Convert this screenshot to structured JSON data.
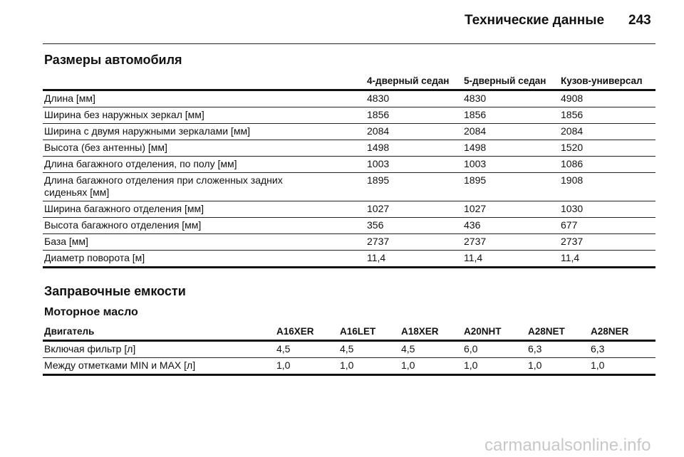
{
  "header": {
    "title": "Технические данные",
    "page": "243"
  },
  "section1": {
    "title": "Размеры автомобиля",
    "table": {
      "columns": [
        "",
        "4-дверный седан",
        "5-дверный седан",
        "Кузов-универсал"
      ],
      "rows": [
        [
          "Длина [мм]",
          "4830",
          "4830",
          "4908"
        ],
        [
          "Ширина без наружных зеркал [мм]",
          "1856",
          "1856",
          "1856"
        ],
        [
          "Ширина с двумя наружными зеркалами [мм]",
          "2084",
          "2084",
          "2084"
        ],
        [
          "Высота (без антенны) [мм]",
          "1498",
          "1498",
          "1520"
        ],
        [
          "Длина багажного отделения, по полу [мм]",
          "1003",
          "1003",
          "1086"
        ],
        [
          "Длина багажного отделения при сложенных задних сиденьях [мм]",
          "1895",
          "1895",
          "1908"
        ],
        [
          "Ширина багажного отделения [мм]",
          "1027",
          "1027",
          "1030"
        ],
        [
          "Высота багажного отделения [мм]",
          "356",
          "436",
          "677"
        ],
        [
          "База [мм]",
          "2737",
          "2737",
          "2737"
        ],
        [
          "Диаметр поворота [м]",
          "11,4",
          "11,4",
          "11,4"
        ]
      ]
    }
  },
  "section2": {
    "title": "Заправочные емкости",
    "subtitle": "Моторное масло",
    "table": {
      "columns": [
        "Двигатель",
        "A16XER",
        "A16LET",
        "A18XER",
        "A20NHT",
        "A28NET",
        "A28NER"
      ],
      "rows": [
        [
          "Включая фильтр [л]",
          "4,5",
          "4,5",
          "4,5",
          "6,0",
          "6,3",
          "6,3"
        ],
        [
          "Между отметками MIN и MAX [л]",
          "1,0",
          "1,0",
          "1,0",
          "1,0",
          "1,0",
          "1,0"
        ]
      ]
    }
  },
  "watermark": "carmanualsonline.info"
}
